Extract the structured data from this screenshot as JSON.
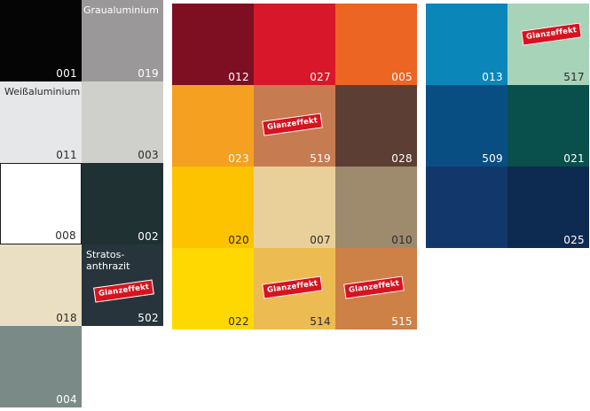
{
  "glanz_label": "Glanzeffekt",
  "groups": [
    {
      "id": "neutrals",
      "swatches": [
        {
          "code": "001",
          "color": "#050505"
        },
        {
          "code": "019",
          "color": "#9a9899",
          "name": "Graualuminium"
        },
        {
          "code": "011",
          "color": "#e6e7e9",
          "name": "Weißaluminium"
        },
        {
          "code": "003",
          "color": "#cfd0cb"
        },
        {
          "code": "008",
          "color": "#ffffff"
        },
        {
          "code": "002",
          "color": "#1f3133"
        },
        {
          "code": "018",
          "color": "#ebdfc3"
        },
        {
          "code": "502",
          "color": "#27343b",
          "name": "Stratos-\nanthrazit"
        },
        {
          "code": "004",
          "color": "#7a8a86"
        }
      ]
    },
    {
      "id": "warm",
      "swatches": [
        {
          "code": "012",
          "color": "#7e0f22"
        },
        {
          "code": "027",
          "color": "#d8182a"
        },
        {
          "code": "005",
          "color": "#ec6523"
        },
        {
          "code": "023",
          "color": "#f5a021"
        },
        {
          "code": "519",
          "color": "#c77b51"
        },
        {
          "code": "028",
          "color": "#5d3e35"
        },
        {
          "code": "020",
          "color": "#fdc300"
        },
        {
          "code": "007",
          "color": "#e9d09a"
        },
        {
          "code": "010",
          "color": "#9e8a6d"
        },
        {
          "code": "022",
          "color": "#fed800"
        },
        {
          "code": "514",
          "color": "#ecbc53"
        },
        {
          "code": "515",
          "color": "#cd8147"
        }
      ]
    },
    {
      "id": "cool",
      "swatches": [
        {
          "code": "013",
          "color": "#0a86b9"
        },
        {
          "code": "517",
          "color": "#a7d3b9"
        },
        {
          "code": "509",
          "color": "#094e83"
        },
        {
          "code": "021",
          "color": "#09504c"
        },
        {
          "code": "025",
          "color": "#12386b"
        }
      ]
    }
  ]
}
